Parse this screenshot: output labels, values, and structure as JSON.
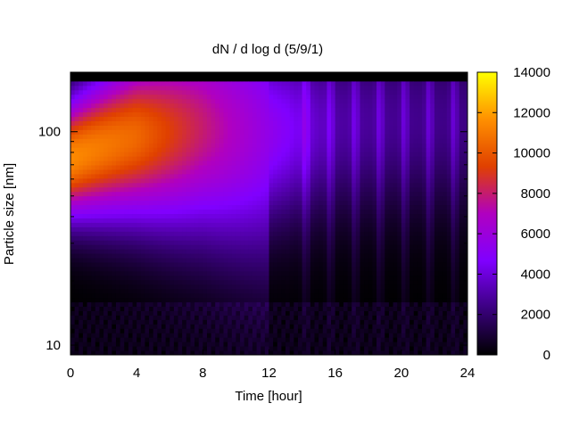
{
  "chart_data": {
    "type": "heatmap",
    "title": "dN / d log d (5/9/1)",
    "xlabel": "Time [hour]",
    "ylabel": "Particle size [nm]",
    "xlim": [
      0,
      24
    ],
    "x_ticks": [
      0,
      4,
      8,
      12,
      16,
      20,
      24
    ],
    "y_scale": "log",
    "ylim": [
      9,
      190
    ],
    "y_ticks": [
      10,
      100
    ],
    "grid": false,
    "colorbar": {
      "range": [
        0,
        14000
      ],
      "ticks": [
        0,
        2000,
        4000,
        6000,
        8000,
        10000,
        12000,
        14000
      ],
      "colormap": [
        "#000000",
        "#3b0080",
        "#8000ff",
        "#b000c0",
        "#e04000",
        "#ff9000",
        "#ffff00"
      ]
    },
    "description_points": {
      "note_hours": [
        0,
        4,
        8,
        12,
        16,
        20,
        24
      ],
      "peak_diameter_nm": [
        75,
        95,
        105,
        100,
        110,
        115,
        115
      ],
      "peak_concentration": [
        11500,
        10500,
        8000,
        5500,
        3000,
        2600,
        2400
      ]
    }
  }
}
